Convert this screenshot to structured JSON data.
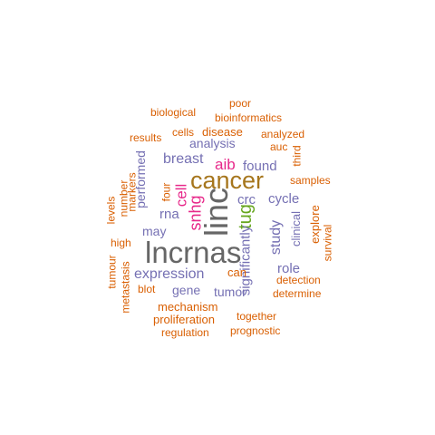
{
  "palette": {
    "orange": "#d95f02",
    "purple": "#7570b3",
    "magenta": "#e7298a",
    "green": "#66a61e",
    "gold": "#a6761d",
    "gray": "#666666"
  },
  "words": [
    {
      "text": "lncrnas",
      "color": "gray"
    },
    {
      "text": "linc",
      "color": "gray"
    },
    {
      "text": "cancer",
      "color": "gold"
    },
    {
      "text": "tug",
      "color": "green"
    },
    {
      "text": "snhg",
      "color": "magenta"
    },
    {
      "text": "cell",
      "color": "magenta"
    },
    {
      "text": "aib",
      "color": "magenta"
    },
    {
      "text": "expression",
      "color": "purple"
    },
    {
      "text": "breast",
      "color": "purple"
    },
    {
      "text": "found",
      "color": "purple"
    },
    {
      "text": "analysis",
      "color": "purple"
    },
    {
      "text": "crc",
      "color": "purple"
    },
    {
      "text": "cycle",
      "color": "purple"
    },
    {
      "text": "rna",
      "color": "purple"
    },
    {
      "text": "may",
      "color": "purple"
    },
    {
      "text": "gene",
      "color": "purple"
    },
    {
      "text": "tumor",
      "color": "purple"
    },
    {
      "text": "role",
      "color": "purple"
    },
    {
      "text": "study",
      "color": "purple"
    },
    {
      "text": "significantly",
      "color": "purple"
    },
    {
      "text": "performed",
      "color": "purple"
    },
    {
      "text": "clinical",
      "color": "purple"
    },
    {
      "text": "biological",
      "color": "orange"
    },
    {
      "text": "poor",
      "color": "orange"
    },
    {
      "text": "bioinformatics",
      "color": "orange"
    },
    {
      "text": "results",
      "color": "orange"
    },
    {
      "text": "cells",
      "color": "orange"
    },
    {
      "text": "disease",
      "color": "orange"
    },
    {
      "text": "analyzed",
      "color": "orange"
    },
    {
      "text": "auc",
      "color": "orange"
    },
    {
      "text": "third",
      "color": "orange"
    },
    {
      "text": "samples",
      "color": "orange"
    },
    {
      "text": "explore",
      "color": "orange"
    },
    {
      "text": "survival",
      "color": "orange"
    },
    {
      "text": "detection",
      "color": "orange"
    },
    {
      "text": "determine",
      "color": "orange"
    },
    {
      "text": "together",
      "color": "orange"
    },
    {
      "text": "prognostic",
      "color": "orange"
    },
    {
      "text": "regulation",
      "color": "orange"
    },
    {
      "text": "proliferation",
      "color": "orange"
    },
    {
      "text": "mechanism",
      "color": "orange"
    },
    {
      "text": "blot",
      "color": "orange"
    },
    {
      "text": "can",
      "color": "orange"
    },
    {
      "text": "high",
      "color": "orange"
    },
    {
      "text": "tumour",
      "color": "orange"
    },
    {
      "text": "metastasis",
      "color": "orange"
    },
    {
      "text": "levels",
      "color": "orange"
    },
    {
      "text": "number",
      "color": "orange"
    },
    {
      "text": "markers",
      "color": "orange"
    },
    {
      "text": "four",
      "color": "orange"
    }
  ]
}
